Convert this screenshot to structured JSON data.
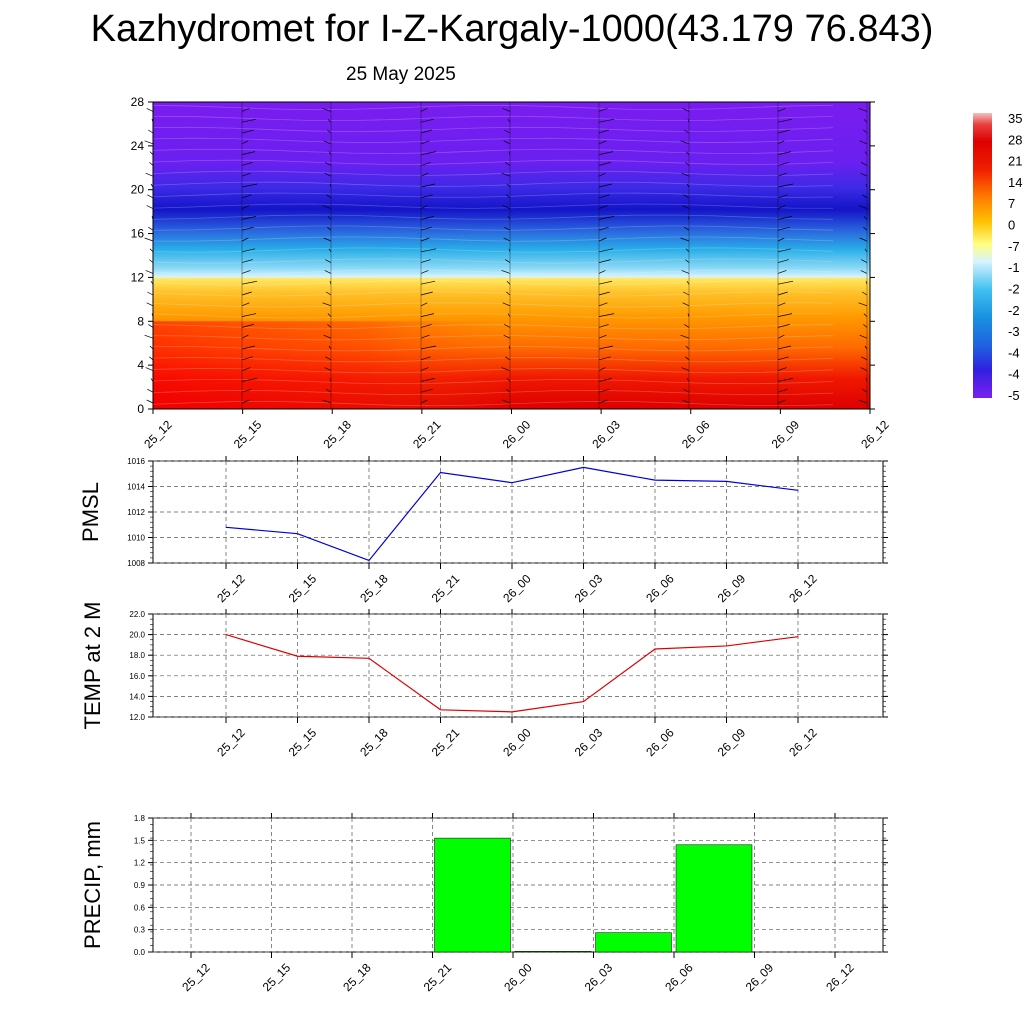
{
  "header": {
    "title": "Kazhydromet for I-Z-Kargaly-1000(43.179 76.843)",
    "date": "25 May 2025"
  },
  "chart_data": [
    {
      "type": "heatmap",
      "name": "cross-section",
      "x_categories": [
        "25_12",
        "25_15",
        "25_18",
        "25_21",
        "26_00",
        "26_03",
        "26_06",
        "26_09",
        "26_12"
      ],
      "y_ticks": [
        "0",
        "4",
        "8",
        "12",
        "16",
        "20",
        "24",
        "28"
      ],
      "ylim": [
        0,
        28
      ],
      "temperature_bands": [
        {
          "y_range": [
            0,
            4
          ],
          "value_c": 28
        },
        {
          "y_range": [
            4,
            8
          ],
          "value_c": 20
        },
        {
          "y_range": [
            8,
            12
          ],
          "value_c": 5
        },
        {
          "y_range": [
            12,
            16
          ],
          "value_c": -25
        },
        {
          "y_range": [
            16,
            20
          ],
          "value_c": -50
        },
        {
          "y_range": [
            20,
            28
          ],
          "value_c": -55
        }
      ],
      "colorbar_labels": [
        "35",
        "28",
        "21",
        "14",
        "7",
        "0",
        "-7",
        "-1",
        "-2",
        "-2",
        "-3",
        "-4",
        "-4",
        "-5"
      ],
      "colors": {
        "hot": "#e00000",
        "warm": "#ff8a00",
        "mild": "#ffd83a",
        "cold": "#23a8e8",
        "deep": "#1a1acc",
        "top": "#7a1cf0"
      }
    },
    {
      "type": "line",
      "ylabel": "PMSL",
      "categories": [
        "25_12",
        "25_15",
        "25_18",
        "25_21",
        "26_00",
        "26_03",
        "26_06",
        "26_09",
        "26_12"
      ],
      "y_ticks": [
        "1008",
        "1010",
        "1012",
        "1014",
        "1016"
      ],
      "ylim": [
        1008,
        1016
      ],
      "series": [
        {
          "values": [
            1010.8,
            1010.3,
            1008.2,
            1015.1,
            1014.3,
            1015.5,
            1014.5,
            1014.4,
            1013.7
          ],
          "color": "#0000dd"
        }
      ]
    },
    {
      "type": "line",
      "ylabel": "TEMP at 2 M",
      "categories": [
        "25_12",
        "25_15",
        "25_18",
        "25_21",
        "26_00",
        "26_03",
        "26_06",
        "26_09",
        "26_12"
      ],
      "y_ticks": [
        "12.0",
        "14.0",
        "16.0",
        "18.0",
        "20.0",
        "22.0"
      ],
      "ylim": [
        12,
        22
      ],
      "series": [
        {
          "values": [
            20.0,
            17.9,
            17.7,
            12.7,
            12.5,
            13.5,
            18.6,
            18.9,
            19.8
          ],
          "color": "#dd0000"
        }
      ]
    },
    {
      "type": "bar",
      "ylabel": "PRECIP, mm",
      "categories": [
        "25_12",
        "25_15",
        "25_18",
        "25_21",
        "26_00",
        "26_03",
        "26_06",
        "26_09",
        "26_12"
      ],
      "y_ticks": [
        "0.0",
        "0.3",
        "0.6",
        "0.9",
        "1.2",
        "1.5",
        "1.8"
      ],
      "ylim": [
        0,
        1.8
      ],
      "values": [
        0,
        0,
        0,
        1.53,
        0.01,
        0.26,
        1.44,
        0,
        0
      ],
      "color": "#00ff00"
    }
  ]
}
